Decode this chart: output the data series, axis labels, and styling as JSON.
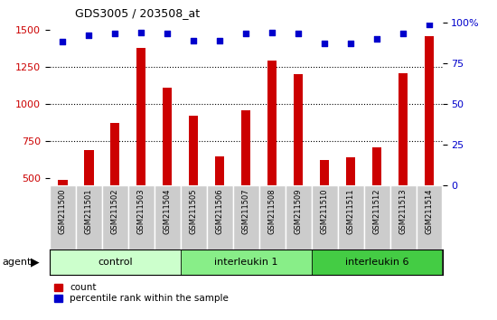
{
  "title": "GDS3005 / 203508_at",
  "categories": [
    "GSM211500",
    "GSM211501",
    "GSM211502",
    "GSM211503",
    "GSM211504",
    "GSM211505",
    "GSM211506",
    "GSM211507",
    "GSM211508",
    "GSM211509",
    "GSM211510",
    "GSM211511",
    "GSM211512",
    "GSM211513",
    "GSM211514"
  ],
  "counts": [
    490,
    690,
    870,
    1380,
    1110,
    920,
    645,
    960,
    1290,
    1200,
    620,
    640,
    710,
    1210,
    1460
  ],
  "percentiles": [
    88,
    92,
    93,
    94,
    93,
    89,
    89,
    93,
    94,
    93,
    87,
    87,
    90,
    93,
    99
  ],
  "groups": [
    {
      "label": "control",
      "start": 0,
      "end": 5,
      "color": "#ccffcc"
    },
    {
      "label": "interleukin 1",
      "start": 5,
      "end": 10,
      "color": "#88ee88"
    },
    {
      "label": "interleukin 6",
      "start": 10,
      "end": 15,
      "color": "#44cc44"
    }
  ],
  "bar_color": "#cc0000",
  "dot_color": "#0000cc",
  "ylim_left": [
    450,
    1550
  ],
  "ylim_right": [
    0,
    100
  ],
  "yticks_left": [
    500,
    750,
    1000,
    1250,
    1500
  ],
  "yticks_right": [
    0,
    25,
    50,
    75,
    100
  ],
  "bar_width": 0.35,
  "agent_label": "agent",
  "legend_count_label": "count",
  "legend_pct_label": "percentile rank within the sample",
  "xlabel_bg": "#cccccc",
  "plot_bg": "#ffffff"
}
